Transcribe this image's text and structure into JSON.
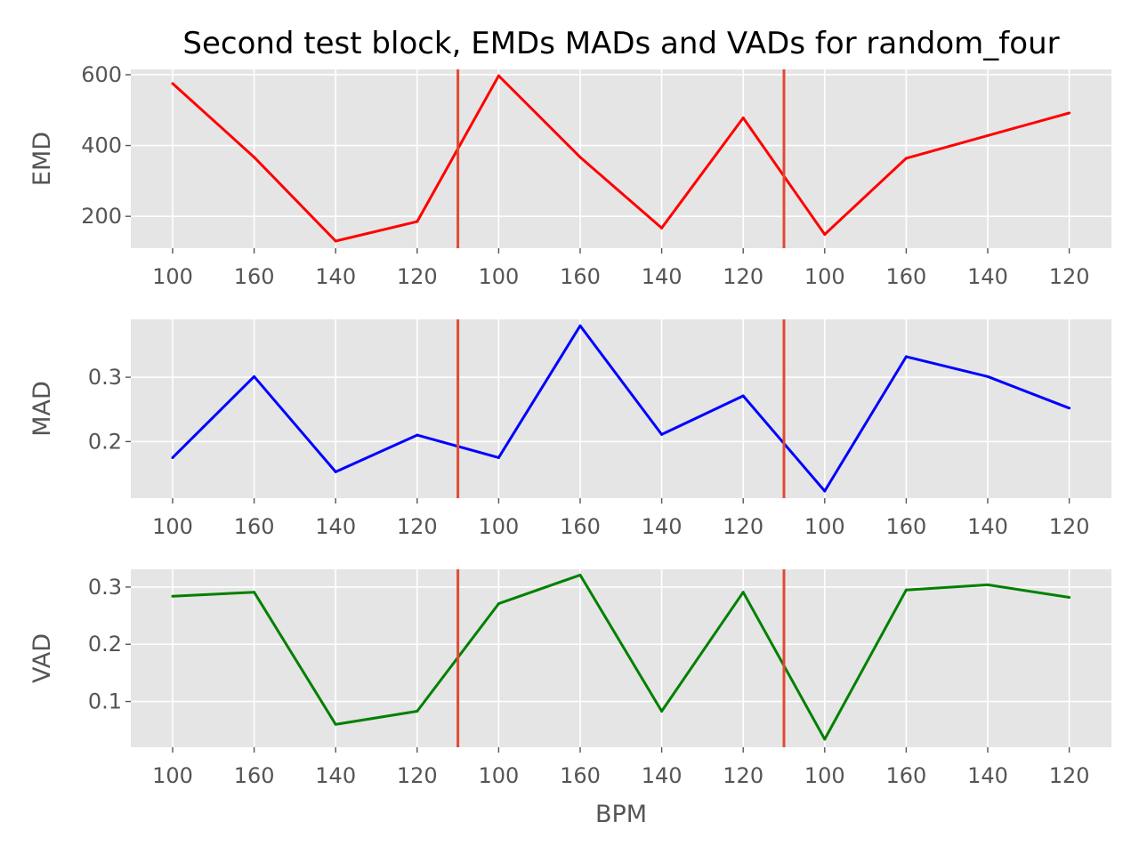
{
  "chart_data": {
    "type": "line",
    "title": "Second test block, EMDs MADs and VADs for random_four",
    "xlabel": "BPM",
    "categories": [
      "100",
      "160",
      "140",
      "120",
      "100",
      "160",
      "140",
      "120",
      "100",
      "160",
      "140",
      "120"
    ],
    "block_separators_after_index": [
      3,
      7
    ],
    "separator_color": "#E24A33",
    "grid": true,
    "panels": [
      {
        "ylabel": "EMD",
        "color": "#ff0000",
        "ylim": [
          110,
          615
        ],
        "yticks": [
          200,
          400,
          600
        ],
        "tick_labels": [
          "200",
          "400",
          "600"
        ],
        "values": [
          575,
          367,
          130,
          185,
          597,
          367,
          167,
          478,
          149,
          364,
          428,
          492
        ]
      },
      {
        "ylabel": "MAD",
        "color": "#0000ff",
        "ylim": [
          0.112,
          0.39
        ],
        "yticks": [
          0.2,
          0.3
        ],
        "tick_labels": [
          "0.2",
          "0.3"
        ],
        "values": [
          0.175,
          0.301,
          0.153,
          0.21,
          0.175,
          0.38,
          0.211,
          0.271,
          0.123,
          0.332,
          0.301,
          0.252
        ]
      },
      {
        "ylabel": "VAD",
        "color": "#008000",
        "ylim": [
          0.02,
          0.331
        ],
        "yticks": [
          0.1,
          0.2,
          0.3
        ],
        "tick_labels": [
          "0.1",
          "0.2",
          "0.3"
        ],
        "values": [
          0.284,
          0.291,
          0.06,
          0.083,
          0.271,
          0.321,
          0.083,
          0.291,
          0.034,
          0.295,
          0.304,
          0.282
        ]
      }
    ]
  }
}
